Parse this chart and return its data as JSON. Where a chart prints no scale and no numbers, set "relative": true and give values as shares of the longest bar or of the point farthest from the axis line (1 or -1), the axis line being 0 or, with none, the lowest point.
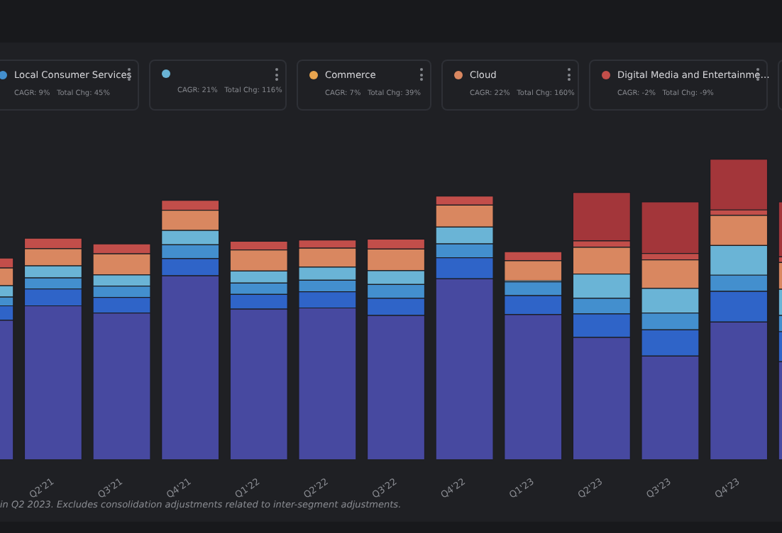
{
  "chart_data": {
    "type": "bar",
    "stacked": true,
    "relative": true,
    "legend": "top",
    "categories": [
      null,
      "Q2'21",
      "Q3'21",
      "Q4'21",
      "Q1'22",
      "Q2'22",
      "Q3'22",
      "Q4'22",
      "Q1'23",
      "Q2'23",
      "Q3'23",
      "Q4'23",
      null
    ],
    "series": [
      {
        "color": "#4749a0",
        "values": [
          0.464,
          0.512,
          0.488,
          0.612,
          0.501,
          0.505,
          0.48,
          0.602,
          0.483,
          0.407,
          0.345,
          0.458,
          0.326
        ]
      },
      {
        "color": "#2f64c8",
        "values": [
          0.048,
          0.056,
          0.052,
          0.057,
          0.049,
          0.054,
          0.057,
          0.07,
          0.063,
          0.078,
          0.087,
          0.102,
          0.1
        ]
      },
      {
        "name": "Local Consumer Services",
        "color": "#438fce",
        "values": [
          0.029,
          0.037,
          0.038,
          0.046,
          0.038,
          0.038,
          0.046,
          0.046,
          0.046,
          0.052,
          0.056,
          0.054,
          0.054
        ]
      },
      {
        "color": "#6ab4d6",
        "values": [
          0.038,
          0.04,
          0.037,
          0.048,
          0.04,
          0.044,
          0.046,
          0.056,
          0.003,
          0.081,
          0.082,
          0.099,
          0.087
        ]
      },
      {
        "name": "Commerce",
        "color": "#e8a44e",
        "values": [
          null,
          null,
          null,
          null,
          null,
          null,
          null,
          null,
          null,
          null,
          null,
          null,
          null
        ]
      },
      {
        "name": "Cloud",
        "color": "#d98760",
        "values": [
          0.059,
          0.057,
          0.07,
          0.067,
          0.07,
          0.063,
          0.072,
          0.073,
          0.067,
          0.089,
          0.095,
          0.1,
          0.089
        ]
      },
      {
        "name": "Digital Media and Entertainme…",
        "color": "#c24e4a",
        "values": [
          0.033,
          0.035,
          0.033,
          0.033,
          0.029,
          0.027,
          0.033,
          0.03,
          0.03,
          0.021,
          0.021,
          0.018,
          0.019
        ]
      },
      {
        "color": "#a3363a",
        "values": [
          null,
          null,
          null,
          null,
          null,
          null,
          null,
          null,
          null,
          0.161,
          0.172,
          0.169,
          0.183
        ]
      }
    ],
    "annotations": [
      "CAGR: 9%   Total Chg: 45%",
      "CAGR: 21%   Total Chg: 116%",
      "CAGR: 7%   Total Chg: 39%",
      "CAGR: 22%   Total Chg: 160%",
      "CAGR: -2%   Total Chg: -9%",
      "in Q2 2023. Excludes consolidation adjustments related to inter-segment adjustments."
    ]
  }
}
